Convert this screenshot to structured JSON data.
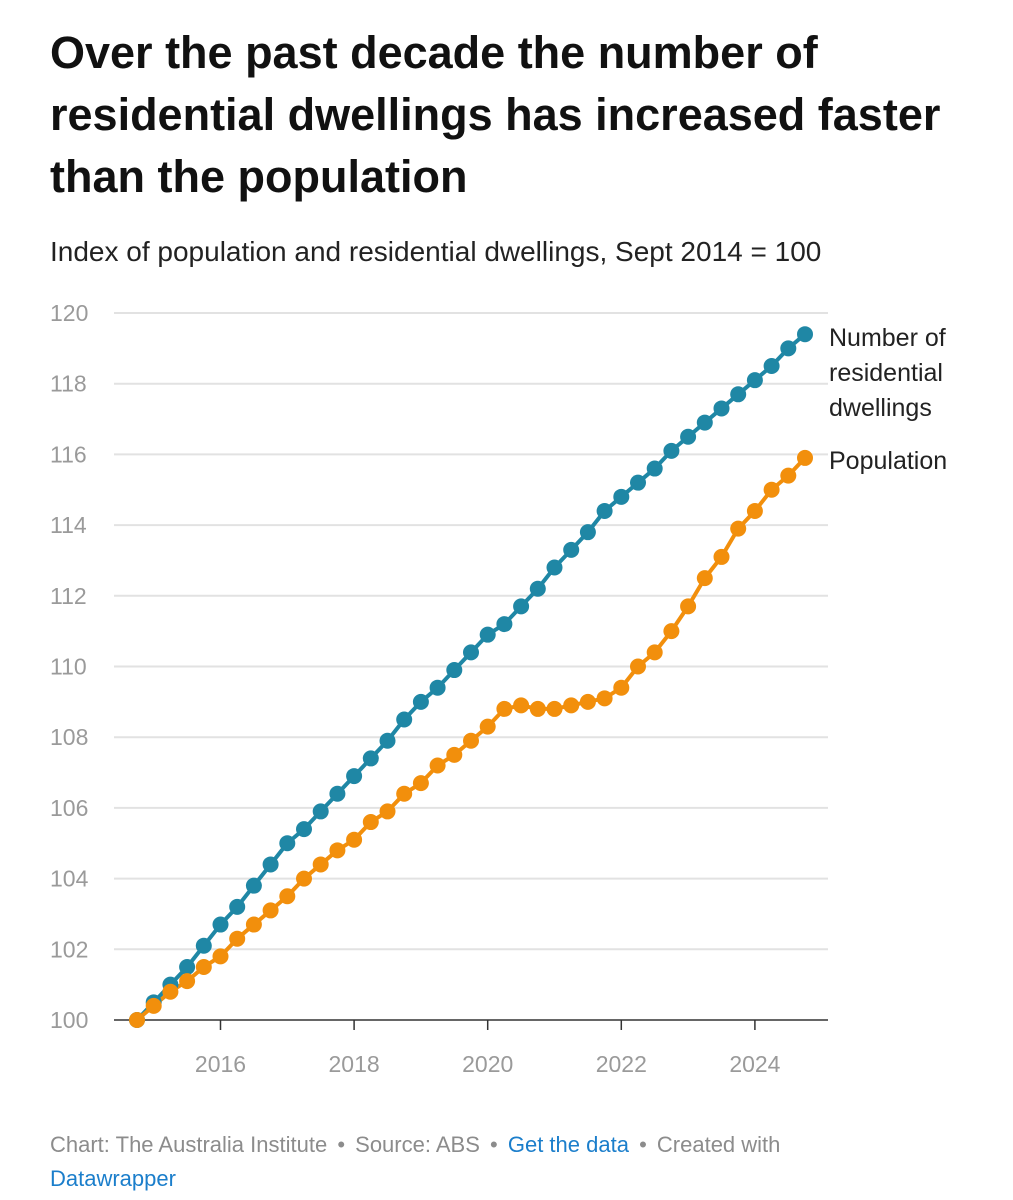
{
  "header": {
    "title": "Over the past decade the number of residential dwellings has increased faster than the population",
    "subtitle": "Index of population and residential dwellings, Sept 2014 = 100"
  },
  "chart_data": {
    "type": "line",
    "title": "Over the past decade the number of residential dwellings has increased faster than the population",
    "subtitle": "Index of population and residential dwellings, Sept 2014 = 100",
    "xlabel": "",
    "ylabel": "",
    "xlim": [
      2014.75,
      2024.75
    ],
    "ylim": [
      100,
      120
    ],
    "x_ticks": [
      2016,
      2018,
      2020,
      2022,
      2024
    ],
    "y_ticks": [
      100,
      102,
      104,
      106,
      108,
      110,
      112,
      114,
      116,
      118,
      120
    ],
    "grid": "horizontal",
    "legend_placement": "right, at line ends",
    "x": [
      2014.75,
      2015.0,
      2015.25,
      2015.5,
      2015.75,
      2016.0,
      2016.25,
      2016.5,
      2016.75,
      2017.0,
      2017.25,
      2017.5,
      2017.75,
      2018.0,
      2018.25,
      2018.5,
      2018.75,
      2019.0,
      2019.25,
      2019.5,
      2019.75,
      2020.0,
      2020.25,
      2020.5,
      2020.75,
      2021.0,
      2021.25,
      2021.5,
      2021.75,
      2022.0,
      2022.25,
      2022.5,
      2022.75,
      2023.0,
      2023.25,
      2023.5,
      2023.75,
      2024.0,
      2024.25,
      2024.5,
      2024.75
    ],
    "series": [
      {
        "name": "Number of residential dwellings",
        "color": "#1f87a5",
        "values": [
          100.0,
          100.5,
          101.0,
          101.5,
          102.1,
          102.7,
          103.2,
          103.8,
          104.4,
          105.0,
          105.4,
          105.9,
          106.4,
          106.9,
          107.4,
          107.9,
          108.5,
          109.0,
          109.4,
          109.9,
          110.4,
          110.9,
          111.2,
          111.7,
          112.2,
          112.8,
          113.3,
          113.8,
          114.4,
          114.8,
          115.2,
          115.6,
          116.1,
          116.5,
          116.9,
          117.3,
          117.7,
          118.1,
          118.5,
          119.0,
          119.4
        ]
      },
      {
        "name": "Population",
        "color": "#f28f0c",
        "values": [
          100.0,
          100.4,
          100.8,
          101.1,
          101.5,
          101.8,
          102.3,
          102.7,
          103.1,
          103.5,
          104.0,
          104.4,
          104.8,
          105.1,
          105.6,
          105.9,
          106.4,
          106.7,
          107.2,
          107.5,
          107.9,
          108.3,
          108.8,
          108.9,
          108.8,
          108.8,
          108.9,
          109.0,
          109.1,
          109.4,
          110.0,
          110.4,
          111.0,
          111.7,
          112.5,
          113.1,
          113.9,
          114.4,
          115.0,
          115.4,
          115.9
        ]
      }
    ],
    "legend": [
      {
        "lines": [
          "Number of",
          "residential",
          "dwellings"
        ]
      },
      {
        "lines": [
          "Population"
        ]
      }
    ]
  },
  "footer": {
    "credit": "Chart: The Australia Institute",
    "separator": "•",
    "source": "Source: ABS",
    "get_data_label": "Get the data",
    "created_with": "Created with",
    "tool_link": "Datawrapper"
  },
  "colors": {
    "dwellings": "#1f87a5",
    "population": "#f28f0c",
    "link": "#1b7ecb",
    "gridline": "#e2e2e2",
    "axis_text": "#9a9a9a"
  }
}
